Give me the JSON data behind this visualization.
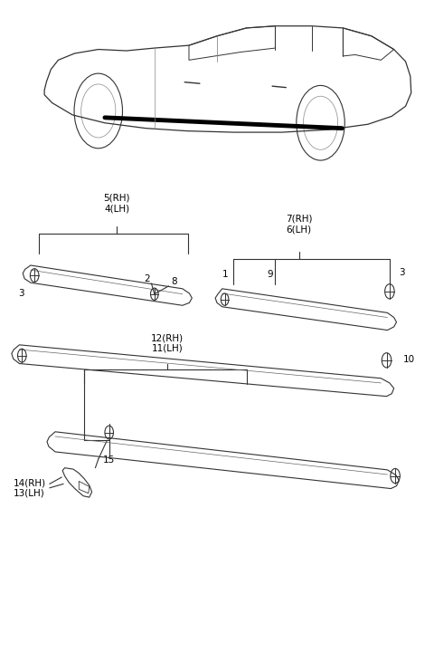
{
  "background_color": "#ffffff",
  "figsize": [
    4.8,
    7.41
  ],
  "dpi": 100,
  "line_color": "#333333",
  "text_color": "#000000",
  "font_size": 7.5,
  "labels": {
    "7RH_6LH": "7(RH)\n6(LH)",
    "3a": "3",
    "1": "1",
    "9": "9",
    "5RH_4LH": "5(RH)\n4(LH)",
    "2": "2",
    "8": "8",
    "3b": "3",
    "12RH_11LH": "12(RH)\n11(LH)",
    "10": "10",
    "15": "15",
    "14RH_13LH": "14(RH)\n13(LH)"
  }
}
